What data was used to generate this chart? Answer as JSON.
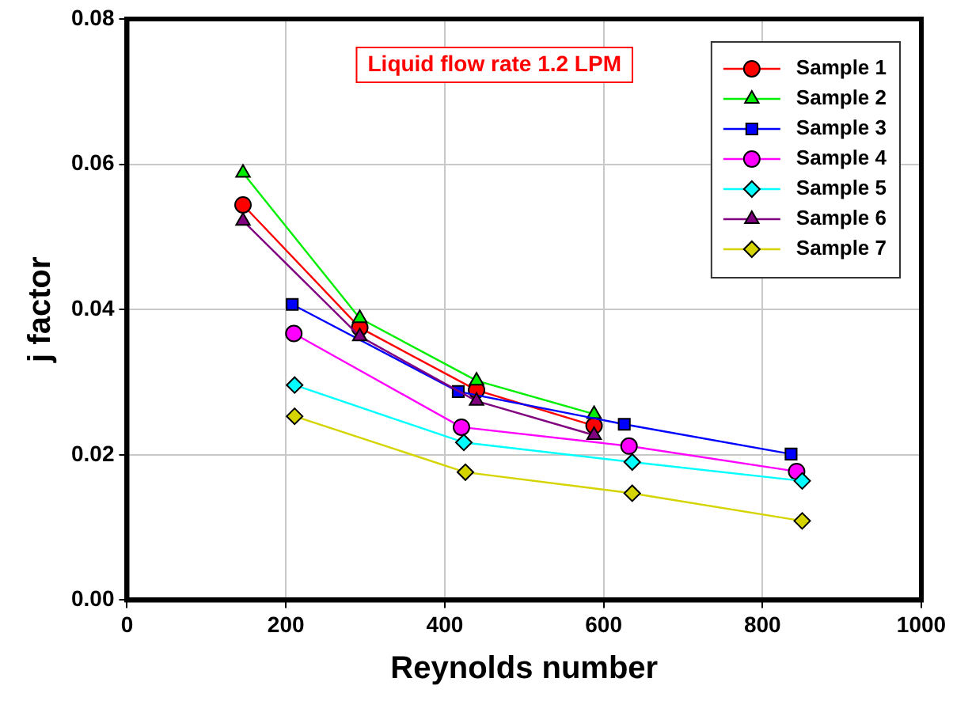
{
  "chart_data": {
    "type": "line",
    "xlabel": "Reynolds number",
    "ylabel": "j factor",
    "annotations": [
      "Liquid flow rate 1.2 LPM"
    ],
    "xlim": [
      0,
      1000
    ],
    "xticks": [
      0,
      200,
      400,
      600,
      800,
      1000
    ],
    "ylim": [
      0,
      0.08
    ],
    "yticks": [
      {
        "value": 0,
        "label": "0.00"
      },
      {
        "value": 0.02,
        "label": "0.02"
      },
      {
        "value": 0.04,
        "label": "0.04"
      },
      {
        "value": 0.06,
        "label": "0.06"
      },
      {
        "value": 0.08,
        "label": "0.08"
      }
    ],
    "grid": true,
    "legend": "top right",
    "line_style": "solid",
    "series": [
      {
        "name": "Sample 1",
        "color": "#ff0000",
        "marker": "circle",
        "x": [
          146,
          293,
          440,
          588
        ],
        "values": [
          0.0544,
          0.0375,
          0.0289,
          0.024
        ]
      },
      {
        "name": "Sample 2",
        "color": "#00ee00",
        "marker": "triangle",
        "x": [
          146,
          293,
          440,
          588
        ],
        "values": [
          0.0588,
          0.0388,
          0.0302,
          0.0256
        ]
      },
      {
        "name": "Sample 3",
        "color": "#0000ff",
        "marker": "square",
        "x": [
          208,
          417,
          626,
          836
        ],
        "values": [
          0.0407,
          0.0287,
          0.0242,
          0.0201
        ]
      },
      {
        "name": "Sample 4",
        "color": "#ff00ff",
        "marker": "circle",
        "x": [
          210,
          421,
          632,
          843
        ],
        "values": [
          0.0367,
          0.0238,
          0.0212,
          0.0177
        ]
      },
      {
        "name": "Sample 5",
        "color": "#00ffff",
        "marker": "diamond",
        "x": [
          211,
          424,
          636,
          850
        ],
        "values": [
          0.0296,
          0.0217,
          0.019,
          0.0164
        ]
      },
      {
        "name": "Sample 6",
        "color": "#800080",
        "marker": "triangle",
        "x": [
          146,
          293,
          440,
          588
        ],
        "values": [
          0.0522,
          0.0363,
          0.0274,
          0.0227
        ]
      },
      {
        "name": "Sample 7",
        "color": "#d4d400",
        "marker": "diamond",
        "x": [
          211,
          426,
          636,
          850
        ],
        "values": [
          0.0253,
          0.0176,
          0.0147,
          0.0109
        ]
      }
    ]
  }
}
